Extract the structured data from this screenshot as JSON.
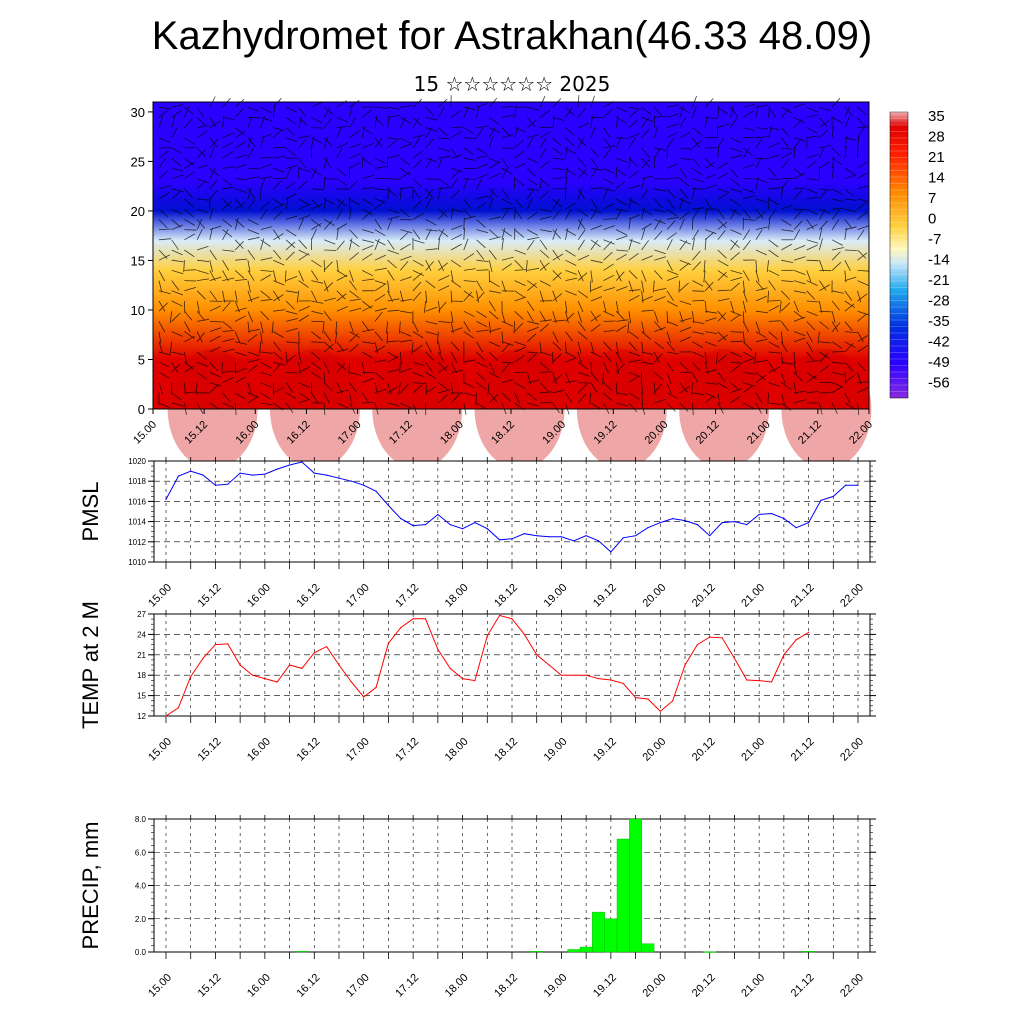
{
  "header": {
    "title": "Kazhydromet for Astrakhan(46.33 48.09)",
    "subtitle": "15 ☆☆☆☆☆☆ 2025"
  },
  "chart_data": [
    {
      "type": "heatmap",
      "title": "",
      "xlabel": "",
      "ylabel": "",
      "x_ticks": [
        "15.00",
        "15.12",
        "16.00",
        "16.12",
        "17.00",
        "17.12",
        "18.00",
        "18.12",
        "19.00",
        "19.12",
        "20.00",
        "20.12",
        "21.00",
        "21.12",
        "22.00"
      ],
      "y_ticks": [
        "0",
        "5",
        "10",
        "15",
        "20",
        "25",
        "30"
      ],
      "ylim": [
        0,
        31
      ],
      "colorbar_labels": [
        "35",
        "28",
        "21",
        "14",
        "7",
        "0",
        "-7",
        "-14",
        "-21",
        "-28",
        "-35",
        "-42",
        "-49",
        "-56"
      ],
      "colors": [
        "#8a2be2",
        "#3d00ff",
        "#0000e0",
        "#3a6ee6",
        "#b0c8ee",
        "#fffacd",
        "#ffe066",
        "#ffb000",
        "#ff7a00",
        "#ff3a00",
        "#e00000"
      ],
      "temperature_profile": [
        {
          "z": 0,
          "t": 33
        },
        {
          "z": 5,
          "t": 22
        },
        {
          "z": 10,
          "t": 8
        },
        {
          "z": 14,
          "t": -7
        },
        {
          "z": 17,
          "t": -20
        },
        {
          "z": 20,
          "t": -45
        },
        {
          "z": 23,
          "t": -60
        },
        {
          "z": 26,
          "t": -60
        },
        {
          "z": 29,
          "t": -58
        },
        {
          "z": 31,
          "t": -56
        }
      ],
      "wind_barbs": true
    },
    {
      "type": "line",
      "ylabel": "PMSL",
      "ylim": [
        1010,
        1020
      ],
      "y_ticks": [
        "1010",
        "1012",
        "1014",
        "1016",
        "1018",
        "1020"
      ],
      "x_ticks": [
        "15.00",
        "15.12",
        "16.00",
        "16.12",
        "17.00",
        "17.12",
        "18.00",
        "18.12",
        "19.00",
        "19.12",
        "20.00",
        "20.12",
        "21.00",
        "21.12",
        "22.00"
      ],
      "color": "#0000ff",
      "x": [
        0,
        3,
        6,
        9,
        12,
        15,
        18,
        21,
        24,
        27,
        30,
        33,
        36,
        39,
        42,
        45,
        48,
        51,
        54,
        57,
        60,
        63,
        66,
        69,
        72,
        75,
        78,
        81,
        84,
        87,
        90,
        93,
        96,
        99,
        102,
        105,
        108,
        111,
        114,
        117,
        120,
        123,
        126,
        129,
        132,
        135,
        138,
        141,
        144,
        147,
        150,
        153,
        156,
        159,
        162,
        165,
        168
      ],
      "values": [
        1016.2,
        1018.5,
        1019.0,
        1018.6,
        1017.6,
        1017.7,
        1018.8,
        1018.6,
        1018.7,
        1019.2,
        1019.6,
        1019.9,
        1018.8,
        1018.6,
        1018.3,
        1018.0,
        1017.6,
        1017.0,
        1015.6,
        1014.3,
        1013.6,
        1013.7,
        1014.7,
        1013.7,
        1013.3,
        1013.9,
        1013.3,
        1012.2,
        1012.3,
        1012.8,
        1012.6,
        1012.5,
        1012.5,
        1012.1,
        1012.6,
        1012.1,
        1011.0,
        1012.4,
        1012.6,
        1013.4,
        1013.9,
        1014.3,
        1014.1,
        1013.7,
        1012.6,
        1013.9,
        1014.0,
        1013.7,
        1014.7,
        1014.8,
        1014.3,
        1013.4,
        1013.9,
        1016.1,
        1016.5,
        1017.6,
        1017.6
      ]
    },
    {
      "type": "line",
      "ylabel": "TEMP at 2 M",
      "ylim": [
        12,
        27
      ],
      "y_ticks": [
        "12",
        "15",
        "18",
        "21",
        "24",
        "27"
      ],
      "x_ticks": [
        "15.00",
        "15.12",
        "16.00",
        "16.12",
        "17.00",
        "17.12",
        "18.00",
        "18.12",
        "19.00",
        "19.12",
        "20.00",
        "20.12",
        "21.00",
        "21.12",
        "22.00"
      ],
      "color": "#ff0000",
      "x": [
        0,
        3,
        6,
        9,
        12,
        15,
        18,
        21,
        24,
        27,
        30,
        33,
        36,
        39,
        42,
        45,
        48,
        51,
        54,
        57,
        60,
        63,
        66,
        69,
        72,
        75,
        78,
        81,
        84,
        87,
        90,
        93,
        96,
        99,
        102,
        105,
        108,
        111,
        114,
        117,
        120,
        123,
        126,
        129,
        132,
        135,
        138,
        141,
        144,
        147,
        150,
        153,
        156
      ],
      "values": [
        12.0,
        13.2,
        17.8,
        20.5,
        22.5,
        22.6,
        19.5,
        18.0,
        17.5,
        17.0,
        19.5,
        19.0,
        21.3,
        22.2,
        19.5,
        17.0,
        14.8,
        16.2,
        22.7,
        25.0,
        26.3,
        26.3,
        21.8,
        19.0,
        17.5,
        17.2,
        23.8,
        26.8,
        26.3,
        24.0,
        21.0,
        19.5,
        18.0,
        18.0,
        18.0,
        17.5,
        17.3,
        16.8,
        14.7,
        14.5,
        12.7,
        14.2,
        19.5,
        22.5,
        23.6,
        23.5,
        20.5,
        17.3,
        17.2,
        17.0,
        21.0,
        23.2,
        24.3
      ]
    },
    {
      "type": "bar",
      "ylabel": "PRECIP, mm",
      "ylim": [
        0,
        8
      ],
      "y_ticks": [
        "0.0",
        "2.0",
        "4.0",
        "6.0",
        "8.0"
      ],
      "x_ticks": [
        "15.00",
        "15.12",
        "16.00",
        "16.12",
        "17.00",
        "17.12",
        "18.00",
        "18.12",
        "19.00",
        "19.12",
        "20.00",
        "20.12",
        "21.00",
        "21.12",
        "22.00"
      ],
      "color": "#00ff00",
      "x": [
        33,
        90,
        99,
        102,
        105,
        108,
        111,
        114,
        117,
        132,
        156
      ],
      "values": [
        0.05,
        0.05,
        0.15,
        0.3,
        2.4,
        2.0,
        6.8,
        8.0,
        0.5,
        0.02,
        0.05
      ]
    }
  ]
}
